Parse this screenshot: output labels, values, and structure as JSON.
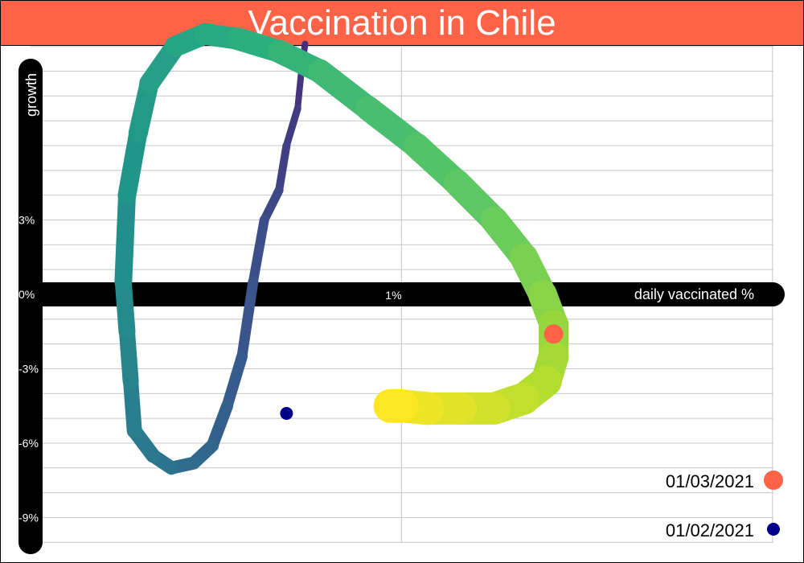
{
  "chart_data": {
    "type": "line",
    "title": "Vaccination in Chile",
    "xlabel": "daily vaccinated %",
    "ylabel": "growth",
    "xlim": [
      0,
      1.97
    ],
    "ylim": [
      -10.3,
      10.2
    ],
    "x_ticks": [
      {
        "value": 1,
        "label": "1%"
      }
    ],
    "y_ticks": [
      {
        "value": 3,
        "label": "3%"
      },
      {
        "value": 0,
        "label": "0%"
      },
      {
        "value": -3,
        "label": "-3%"
      },
      {
        "value": -6,
        "label": "-6%"
      },
      {
        "value": -9,
        "label": "-9%"
      }
    ],
    "grid": true,
    "colors": {
      "title_bar": "#ff6347",
      "axis": "#000000",
      "grid": "#c8c8c8",
      "marker_start": "#00008b",
      "marker_end": "#ff6347",
      "path_gradient": [
        "#472d7b",
        "#3b528b",
        "#2c728e",
        "#21918c",
        "#28ae80",
        "#5ec962",
        "#addc30",
        "#fde725"
      ]
    },
    "series": [
      {
        "x": [
          0.74,
          0.73,
          0.72,
          0.69,
          0.67,
          0.63,
          0.6,
          0.57,
          0.53,
          0.49,
          0.44,
          0.38,
          0.33,
          0.28,
          0.27,
          0.26,
          0.25,
          0.26,
          0.29,
          0.32,
          0.39,
          0.47,
          0.56,
          0.67,
          0.78,
          0.91,
          1.04,
          1.15,
          1.25,
          1.33,
          1.38,
          1.41,
          1.41,
          1.39,
          1.33,
          1.25,
          1.16,
          1.07,
          1.0,
          0.97
        ],
        "y": [
          10.1,
          9.0,
          7.5,
          6.0,
          4.2,
          3.0,
          0.5,
          -2.5,
          -4.5,
          -6.1,
          -6.8,
          -7.0,
          -6.5,
          -5.5,
          -3.5,
          -1.5,
          0.5,
          4.0,
          6.5,
          8.5,
          10.0,
          10.5,
          10.3,
          9.8,
          9.0,
          7.5,
          6.0,
          4.5,
          3.0,
          1.5,
          0.0,
          -1.2,
          -2.5,
          -3.5,
          -4.2,
          -4.6,
          -4.6,
          -4.6,
          -4.5,
          -4.5
        ],
        "widths": [
          8,
          8,
          9,
          10,
          11,
          12,
          13,
          14,
          15,
          16,
          16,
          17,
          18,
          19,
          20,
          21,
          22,
          23,
          24,
          25,
          26,
          27,
          28,
          29,
          30,
          31,
          32,
          33,
          34,
          35,
          36,
          37,
          38,
          39,
          40,
          40,
          40,
          41,
          42,
          42
        ]
      }
    ],
    "markers": [
      {
        "label": "01/03/2021",
        "x": 1.41,
        "y": -1.6,
        "color": "#ff6347",
        "size": 12
      },
      {
        "label": "01/02/2021",
        "x": 0.69,
        "y": -4.8,
        "color": "#00008b",
        "size": 8
      }
    ],
    "legend_position": "bottom-right"
  }
}
